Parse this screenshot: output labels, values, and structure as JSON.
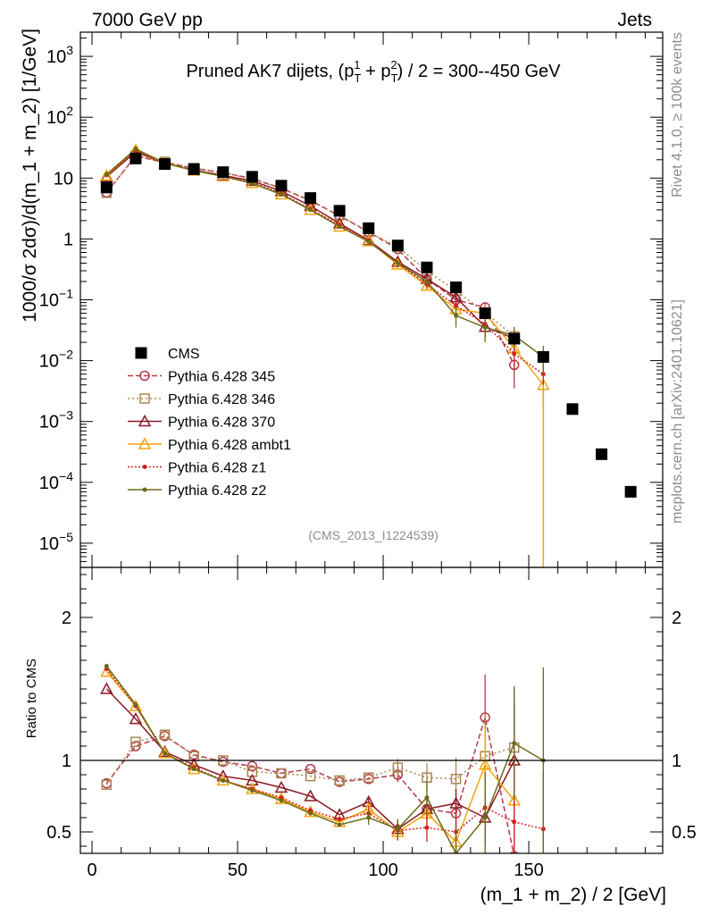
{
  "header": {
    "left": "7000 GeV pp",
    "right": "Jets",
    "side_top": "Rivet 4.1.0, ≥ 100k events",
    "side_bottom": "mcplots.cern.ch [arXiv:2401.10621]",
    "analysis_id": "(CMS_2013_I1224539)"
  },
  "colors": {
    "cms": "#000000",
    "p345": "#b5394a",
    "p346": "#a8874f",
    "p370": "#8b1a24",
    "ambt1": "#f2a30f",
    "z1": "#d62020",
    "z2": "#6b6b1a"
  },
  "chart_data": [
    {
      "type": "line",
      "title_parts": {
        "pre": "Pruned AK7 dijets, (p",
        "sub1": "T",
        "sup1": "1",
        "mid": " + p",
        "sub2": "T",
        "sup2": "2",
        "post": ") / 2 = 300--450 GeV"
      },
      "ylabel": "1000/σ  2dσ)/d(m_1 + m_2) [1/GeV]",
      "yscale": "log",
      "ylim": [
        4e-06,
        2500
      ],
      "xlim": [
        -4,
        196
      ],
      "yticks": [
        {
          "value": 1000,
          "mant": "10",
          "exp": "3"
        },
        {
          "value": 100,
          "mant": "10",
          "exp": "2"
        },
        {
          "value": 10,
          "mant": "10",
          "exp": ""
        },
        {
          "value": 1,
          "mant": "1",
          "exp": ""
        },
        {
          "value": 0.1,
          "mant": "10",
          "exp": "−1"
        },
        {
          "value": 0.01,
          "mant": "10",
          "exp": "−2"
        },
        {
          "value": 0.001,
          "mant": "10",
          "exp": "−3"
        },
        {
          "value": 0.0001,
          "mant": "10",
          "exp": "−4"
        },
        {
          "value": 1e-05,
          "mant": "10",
          "exp": "−5"
        }
      ],
      "legend_position": "lower-left",
      "legend": [
        {
          "key": "cms",
          "label": "CMS"
        },
        {
          "key": "p345",
          "label": "Pythia 6.428 345"
        },
        {
          "key": "p346",
          "label": "Pythia 6.428 346"
        },
        {
          "key": "p370",
          "label": "Pythia 6.428 370"
        },
        {
          "key": "ambt1",
          "label": "Pythia 6.428 ambt1"
        },
        {
          "key": "z1",
          "label": "Pythia 6.428 z1"
        },
        {
          "key": "z2",
          "label": "Pythia 6.428 z2"
        }
      ],
      "data": {
        "name": "CMS",
        "x": [
          5,
          15,
          25,
          35,
          45,
          55,
          65,
          75,
          85,
          95,
          105,
          115,
          125,
          135,
          145,
          155,
          165,
          175,
          185
        ],
        "y": [
          7.0,
          21,
          17,
          14,
          12.5,
          10.5,
          7.5,
          4.7,
          2.9,
          1.5,
          0.78,
          0.34,
          0.16,
          0.06,
          0.023,
          0.0115,
          0.0016,
          0.00029,
          7e-05
        ]
      },
      "series": [
        {
          "key": "p345",
          "name": "Pythia 6.428 345",
          "marker": "circle",
          "dash": "6,3",
          "x": [
            5,
            15,
            25,
            35,
            45,
            55,
            65,
            75,
            85,
            95,
            105,
            115,
            125,
            135,
            145
          ],
          "y": [
            5.8,
            23,
            18,
            14.5,
            12.2,
            9.9,
            6.8,
            4.3,
            2.4,
            1.3,
            0.68,
            0.22,
            0.1,
            0.075,
            0.0085
          ],
          "yerr": [
            0,
            0,
            0,
            0,
            0,
            0,
            0,
            0,
            0,
            0,
            0,
            0.03,
            0.02,
            0.015,
            0.005
          ]
        },
        {
          "key": "p346",
          "name": "Pythia 6.428 346",
          "marker": "square",
          "dash": "2,3",
          "x": [
            5,
            15,
            25,
            35,
            45,
            55,
            65,
            75,
            85,
            95,
            105,
            115,
            125,
            135,
            145
          ],
          "y": [
            5.7,
            23.5,
            18.5,
            14.7,
            12.5,
            9.5,
            6.8,
            4.15,
            2.45,
            1.3,
            0.74,
            0.3,
            0.14,
            0.062,
            0.025
          ],
          "yerr": [
            0,
            0,
            0,
            0,
            0,
            0,
            0,
            0,
            0,
            0,
            0,
            0.04,
            0.025,
            0.015,
            0.008
          ]
        },
        {
          "key": "p370",
          "name": "Pythia 6.428 370",
          "marker": "triangle",
          "dash": "",
          "x": [
            5,
            15,
            25,
            35,
            45,
            55,
            65,
            75,
            85,
            95,
            105,
            115,
            125,
            135,
            145
          ],
          "y": [
            10.5,
            27,
            17.5,
            13.5,
            11.1,
            9.0,
            6.1,
            3.5,
            1.8,
            0.95,
            0.42,
            0.22,
            0.11,
            0.036,
            0.023
          ],
          "yerr": [
            0,
            0,
            0,
            0,
            0,
            0,
            0,
            0,
            0,
            0,
            0.05,
            0.03,
            0.02,
            0.012,
            0.008
          ]
        },
        {
          "key": "ambt1",
          "name": "Pythia 6.428 ambt1",
          "marker": "triangle",
          "dash": "",
          "x": [
            5,
            15,
            25,
            35,
            45,
            55,
            65,
            75,
            85,
            95,
            105,
            115,
            125,
            135,
            145,
            155
          ],
          "y": [
            11,
            29,
            17.5,
            13.3,
            10.7,
            8.3,
            5.4,
            3.0,
            1.6,
            0.92,
            0.38,
            0.17,
            0.07,
            0.06,
            0.016,
            0.004
          ],
          "yerr": [
            0,
            0,
            0,
            0,
            0,
            0,
            0,
            0,
            0,
            0,
            0.05,
            0.03,
            0.02,
            0.02,
            0.007,
            0.0039
          ]
        },
        {
          "key": "z1",
          "name": "Pythia 6.428 z1",
          "marker": "dot",
          "dash": "2,2",
          "x": [
            5,
            15,
            25,
            35,
            45,
            55,
            65,
            75,
            85,
            95,
            105,
            115,
            125,
            135,
            145,
            155
          ],
          "y": [
            11.2,
            28.5,
            17.8,
            13.5,
            10.8,
            8.5,
            5.6,
            3.1,
            1.7,
            0.95,
            0.4,
            0.18,
            0.08,
            0.04,
            0.013,
            0.006
          ],
          "yerr": [
            0,
            0,
            0,
            0,
            0,
            0,
            0,
            0,
            0,
            0,
            0.05,
            0.03,
            0.02,
            0.015,
            0.006,
            0.004
          ]
        },
        {
          "key": "z2",
          "name": "Pythia 6.428 z2",
          "marker": "dot",
          "dash": "",
          "x": [
            5,
            15,
            25,
            35,
            45,
            55,
            65,
            75,
            85,
            95,
            105,
            115,
            125,
            135,
            145,
            155
          ],
          "y": [
            11.5,
            30,
            17.8,
            13.3,
            10.7,
            8.2,
            5.4,
            3.0,
            1.6,
            0.9,
            0.4,
            0.2,
            0.055,
            0.035,
            0.026,
            0.0115
          ],
          "yerr": [
            0,
            0,
            0,
            0,
            0,
            0,
            0,
            0,
            0,
            0,
            0.05,
            0.03,
            0.02,
            0.015,
            0.01,
            0.006
          ]
        }
      ]
    },
    {
      "type": "line",
      "ylabel": "Ratio to CMS",
      "xlabel": "(m_1 + m_2) / 2 [GeV]",
      "yscale": "linear",
      "ylim": [
        0.35,
        2.35
      ],
      "xlim": [
        -4,
        196
      ],
      "xticks": [
        0,
        50,
        100,
        150
      ],
      "yticks": [
        0.5,
        1,
        2
      ],
      "reference": 1,
      "series": [
        {
          "key": "p345",
          "marker": "circle",
          "dash": "6,3",
          "x": [
            5,
            15,
            25,
            35,
            45,
            55,
            65,
            75,
            85,
            95,
            105,
            115,
            125,
            135,
            145
          ],
          "y": [
            0.84,
            1.1,
            1.17,
            1.04,
            0.99,
            0.96,
            0.91,
            0.94,
            0.85,
            0.87,
            0.9,
            0.66,
            0.63,
            1.3,
            0.33
          ],
          "yerr": [
            0,
            0,
            0,
            0,
            0,
            0,
            0,
            0,
            0,
            0,
            0.05,
            0.08,
            0.1,
            0.3,
            0.3
          ]
        },
        {
          "key": "p346",
          "marker": "square",
          "dash": "2,3",
          "x": [
            5,
            15,
            25,
            35,
            45,
            55,
            65,
            75,
            85,
            95,
            105,
            115,
            125,
            135,
            145
          ],
          "y": [
            0.83,
            1.13,
            1.18,
            1.03,
            1.0,
            0.92,
            0.91,
            0.89,
            0.86,
            0.88,
            0.95,
            0.88,
            0.87,
            1.03,
            1.09
          ],
          "yerr": [
            0,
            0,
            0,
            0,
            0,
            0,
            0,
            0,
            0,
            0,
            0.06,
            0.1,
            0.15,
            0.3,
            0.4
          ]
        },
        {
          "key": "p370",
          "marker": "triangle",
          "dash": "",
          "x": [
            5,
            15,
            25,
            35,
            45,
            55,
            65,
            75,
            85,
            95,
            105,
            115,
            125,
            135,
            145
          ],
          "y": [
            1.5,
            1.29,
            1.06,
            0.97,
            0.89,
            0.86,
            0.81,
            0.75,
            0.62,
            0.71,
            0.52,
            0.66,
            0.7,
            0.6,
            1.0
          ],
          "yerr": [
            0,
            0,
            0,
            0,
            0,
            0,
            0,
            0,
            0,
            0.04,
            0.06,
            0.08,
            0.1,
            0.2,
            0.4
          ]
        },
        {
          "key": "ambt1",
          "marker": "triangle",
          "dash": "",
          "x": [
            5,
            15,
            25,
            35,
            45,
            55,
            65,
            75,
            85,
            95,
            105,
            115,
            125,
            135,
            145
          ],
          "y": [
            1.62,
            1.38,
            1.05,
            0.94,
            0.86,
            0.8,
            0.73,
            0.64,
            0.57,
            0.66,
            0.5,
            0.63,
            0.43,
            0.97,
            0.72
          ],
          "yerr": [
            0,
            0,
            0,
            0,
            0,
            0,
            0,
            0,
            0,
            0.04,
            0.06,
            0.1,
            0.12,
            0.25,
            0.35
          ]
        },
        {
          "key": "z1",
          "marker": "dot",
          "dash": "2,2",
          "x": [
            5,
            15,
            25,
            35,
            45,
            55,
            65,
            75,
            85,
            95,
            105,
            115,
            125,
            135,
            145,
            155
          ],
          "y": [
            1.64,
            1.38,
            1.05,
            0.95,
            0.86,
            0.8,
            0.74,
            0.65,
            0.59,
            0.63,
            0.51,
            0.53,
            0.5,
            0.67,
            0.57,
            0.52
          ],
          "yerr": [
            0,
            0,
            0,
            0,
            0,
            0,
            0,
            0,
            0,
            0.05,
            0.07,
            0.1,
            0.15,
            0.25,
            0.4,
            0.4
          ]
        },
        {
          "key": "z2",
          "marker": "dot",
          "dash": "",
          "x": [
            5,
            15,
            25,
            35,
            45,
            55,
            65,
            75,
            85,
            95,
            105,
            115,
            125,
            135,
            145,
            155
          ],
          "y": [
            1.66,
            1.39,
            1.05,
            0.94,
            0.86,
            0.79,
            0.72,
            0.63,
            0.55,
            0.6,
            0.52,
            0.74,
            0.35,
            0.6,
            1.12,
            1.0
          ],
          "yerr": [
            0,
            0,
            0,
            0,
            0,
            0,
            0,
            0,
            0,
            0.05,
            0.07,
            0.12,
            0.2,
            0.3,
            0.4,
            0.65
          ]
        }
      ]
    }
  ]
}
